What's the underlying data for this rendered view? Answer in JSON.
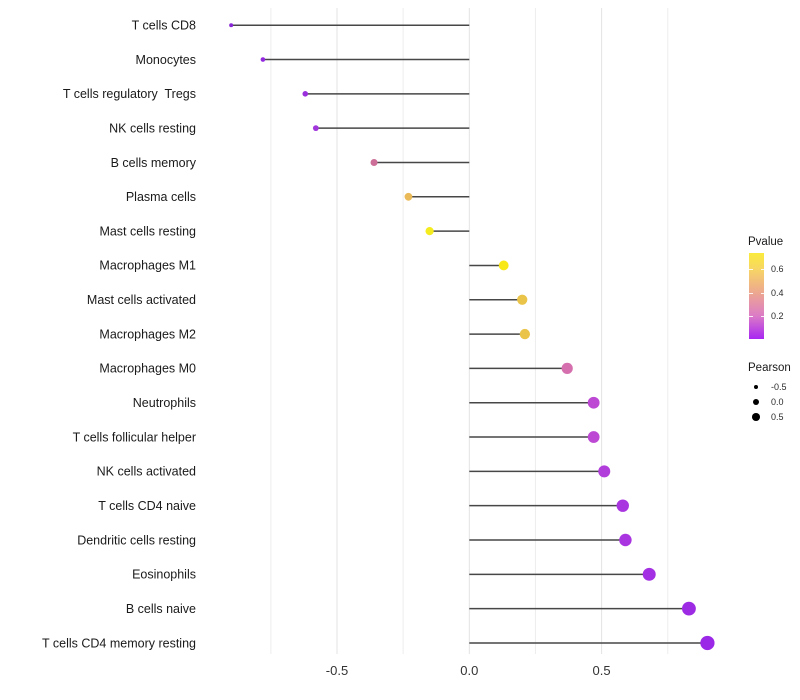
{
  "chart_data": {
    "type": "lollipop",
    "title": "",
    "xlabel": "",
    "ylabel": "",
    "xlim": [
      -1.02,
      0.97
    ],
    "x_tick_labels": [
      "-0.5",
      "0.0",
      "0.5"
    ],
    "x_tick_values": [
      -0.5,
      0.0,
      0.5
    ],
    "gridlines_minor": [
      -0.75,
      -0.25,
      0.25,
      0.75
    ],
    "gridlines_major": [
      -0.5,
      0.0,
      0.5
    ],
    "grid_color_minor": "#ededed",
    "grid_color_major": "#e3e3e3",
    "stem_color": "#474747",
    "categories": [
      "T cells CD8",
      "Monocytes",
      "T cells regulatory  Tregs",
      "NK cells resting",
      "B cells memory",
      "Plasma cells",
      "Mast cells resting",
      "Macrophages M1",
      "Mast cells activated",
      "Macrophages M2",
      "Macrophages M0",
      "Neutrophils",
      "T cells follicular helper",
      "NK cells activated",
      "T cells CD4 naive",
      "Dendritic cells resting",
      "Eosinophils",
      "B cells naive",
      "T cells CD4 memory resting"
    ],
    "series": [
      {
        "name": "Pearson",
        "values": [
          -0.9,
          -0.78,
          -0.62,
          -0.58,
          -0.36,
          -0.23,
          -0.15,
          0.13,
          0.2,
          0.21,
          0.37,
          0.47,
          0.47,
          0.51,
          0.58,
          0.59,
          0.68,
          0.83,
          0.9
        ]
      },
      {
        "name": "Pvalue_estimated",
        "values": [
          0.02,
          0.05,
          0.08,
          0.1,
          0.35,
          0.5,
          0.65,
          0.7,
          0.55,
          0.55,
          0.3,
          0.18,
          0.18,
          0.13,
          0.09,
          0.09,
          0.06,
          0.03,
          0.01
        ]
      }
    ],
    "dot_colors": [
      "#8826D6",
      "#9229DF",
      "#9A2FDC",
      "#A136DC",
      "#CC6E97",
      "#EBBA58",
      "#F5EC20",
      "#F8E818",
      "#EAC448",
      "#EAC448",
      "#D56FAE",
      "#BC48D4",
      "#BC48D4",
      "#B13DDB",
      "#A935E0",
      "#A935E0",
      "#A330E2",
      "#9D2BE4",
      "#9A28E6"
    ],
    "legend": {
      "pvalue": {
        "title": "Pvalue",
        "tick_labels": [
          "0.6",
          "0.4",
          "0.2"
        ],
        "tick_values": [
          0.6,
          0.4,
          0.2
        ],
        "range": [
          0,
          0.74
        ],
        "gradient_stops": [
          {
            "offset": 0,
            "color": "#FAEB3C"
          },
          {
            "offset": 18.5,
            "color": "#F7D664"
          },
          {
            "offset": 45.7,
            "color": "#EDA88F"
          },
          {
            "offset": 72.8,
            "color": "#DC7CC6"
          },
          {
            "offset": 100,
            "color": "#A826F2"
          }
        ]
      },
      "pearson": {
        "title": "Pearson",
        "items": [
          {
            "label": "-0.5",
            "value": -0.5
          },
          {
            "label": "0.0",
            "value": 0.0
          },
          {
            "label": "0.5",
            "value": 0.5
          }
        ]
      }
    }
  }
}
